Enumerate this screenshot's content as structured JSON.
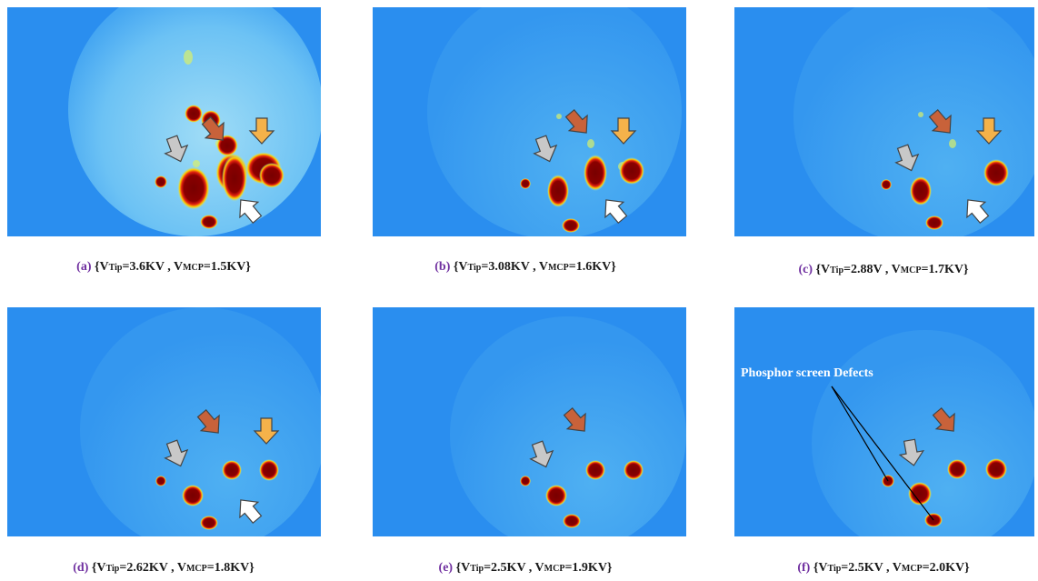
{
  "panels": [
    {
      "label": "(a)",
      "caption": [
        "{V",
        "Tip",
        "=3.6KV , V",
        "MCP",
        "=1.5KV}"
      ]
    },
    {
      "label": "(b)",
      "caption": [
        "{V",
        "Tip",
        "=3.08KV , V",
        "MCP",
        "=1.6KV}"
      ]
    },
    {
      "label": "(c)",
      "caption": [
        "{V",
        "Tip",
        "=2.88V , V",
        "MCP",
        "=1.7KV}"
      ]
    },
    {
      "label": "(d)",
      "caption": [
        "{V",
        "Tip",
        "=2.62KV , V",
        "MCP",
        "=1.8KV}"
      ]
    },
    {
      "label": "(e)",
      "caption": [
        "{V",
        "Tip",
        "=2.5KV , V",
        "MCP",
        "=1.9KV}"
      ]
    },
    {
      "label": "(f)",
      "caption": [
        "{V",
        "Tip",
        "=2.5KV , V",
        "MCP",
        "=2.0KV}"
      ]
    }
  ],
  "annotation": "Phosphor screen Defects"
}
